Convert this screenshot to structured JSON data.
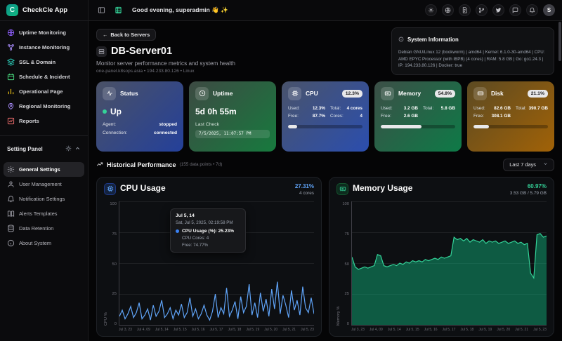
{
  "app": {
    "name": "CheckCle App",
    "logo_letter": "C"
  },
  "header": {
    "greeting": "Good evening, superadmin 👋 ✨",
    "avatar": "S",
    "icons": [
      "theme",
      "language",
      "docs",
      "github",
      "twitter",
      "chat",
      "notifications"
    ]
  },
  "sidebar": {
    "items": [
      {
        "label": "Uptime Monitoring",
        "icon": "globe-icon",
        "color": "#8b5cf6"
      },
      {
        "label": "Instance Monitoring",
        "icon": "nodes-icon",
        "color": "#a78bfa"
      },
      {
        "label": "SSL & Domain",
        "icon": "layers-icon",
        "color": "#2dd4bf"
      },
      {
        "label": "Schedule & Incident",
        "icon": "calendar-icon",
        "color": "#4ade80"
      },
      {
        "label": "Operational Page",
        "icon": "bar-chart-icon",
        "color": "#facc15"
      },
      {
        "label": "Regional Monitoring",
        "icon": "map-pin-icon",
        "color": "#a78bfa"
      },
      {
        "label": "Reports",
        "icon": "report-chart-icon",
        "color": "#f87171"
      }
    ],
    "settings_header": "Setting Panel",
    "settings_items": [
      {
        "label": "General Settings",
        "icon": "gear-icon",
        "active": true
      },
      {
        "label": "User Management",
        "icon": "user-icon",
        "active": false
      },
      {
        "label": "Notification Settings",
        "icon": "bell-icon",
        "active": false
      },
      {
        "label": "Alerts Templates",
        "icon": "book-icon",
        "active": false
      },
      {
        "label": "Data Retention",
        "icon": "database-icon",
        "active": false
      },
      {
        "label": "About System",
        "icon": "info-icon",
        "active": false
      }
    ]
  },
  "page": {
    "back_button": "Back to Servers",
    "title": "DB-Server01",
    "subtitle": "Monitor server performance metrics and system health",
    "meta": "one-panel.k8sops.asia • 194.233.80.126 • Linux",
    "system_info": {
      "title": "System Information",
      "text": "Debian GNU/Linux 12 (bookworm) | amd64 | Kernel: 6.1.0-30-amd64 | CPU: AMD EPYC Processor (with IBPB) (4 cores) | RAM: 5.8 GB | Go: go1.24.3 | IP: 194.233.80.126 | Docker: true"
    }
  },
  "cards": {
    "status": {
      "title": "Status",
      "value": "Up",
      "agent_label": "Agent:",
      "agent": "stopped",
      "connection_label": "Connection:",
      "connection": "connected"
    },
    "uptime": {
      "title": "Uptime",
      "value": "5d 0h 55m",
      "last_check_label": "Last Check",
      "last_check": "7/5/2025, 11:07:57 PM"
    },
    "cpu": {
      "title": "CPU",
      "badge": "12.3%",
      "used_label": "Used:",
      "used": "12.3%",
      "total_label": "Total:",
      "total": "4 cores",
      "free_label": "Free:",
      "free": "87.7%",
      "cores_label": "Cores:",
      "cores": "4",
      "progress": 12.3
    },
    "memory": {
      "title": "Memory",
      "badge": "54.8%",
      "used_label": "Used:",
      "used": "3.2 GB",
      "total_label": "Total:",
      "total": "5.8 GB",
      "free_label": "Free:",
      "free": "2.6 GB",
      "progress": 54.8
    },
    "disk": {
      "title": "Disk",
      "badge": "21.1%",
      "used_label": "Used:",
      "used": "82.6 GB",
      "total_label": "Total:",
      "total": "390.7 GB",
      "free_label": "Free:",
      "free": "308.1 GB",
      "progress": 21.1
    }
  },
  "performance": {
    "title": "Historical Performance",
    "meta": "(155 data points • 7d)",
    "range": "Last 7 days"
  },
  "tooltip": {
    "title": "Jul 5, 14",
    "date": "Sat, Jul 5, 2025, 02:19:58 PM",
    "main": "CPU Usage (%): 25.23%",
    "line2": "CPU Cores: 4",
    "line3": "Free: 74.77%"
  },
  "colors": {
    "accent_teal": "#10b981",
    "status_up": "#34d399",
    "cpu_accent": "#60a5fa",
    "memory_accent": "#34d399"
  },
  "chart_data": [
    {
      "type": "line",
      "title": "CPU Usage",
      "current": "27.31%",
      "sub": "4 cores",
      "ylabel": "CPU %",
      "ylim": [
        0,
        100
      ],
      "yticks": [
        100,
        75,
        50,
        25,
        0
      ],
      "x_labels": [
        "Jul 3, 23",
        "Jul 4, 09",
        "Jul 5, 14",
        "Jul 5, 15",
        "Jul 5, 16",
        "Jul 5, 17",
        "Jul 5, 18",
        "Jul 5, 19",
        "Jul 5, 20",
        "Jul 5, 21",
        "Jul 5, 23"
      ],
      "color": "#60a5fa",
      "values": [
        7,
        12,
        5,
        9,
        15,
        6,
        10,
        18,
        5,
        8,
        13,
        4,
        16,
        7,
        11,
        20,
        6,
        9,
        14,
        5,
        12,
        8,
        17,
        6,
        10,
        22,
        7,
        13,
        5,
        9,
        16,
        8,
        4,
        11,
        25,
        6,
        14,
        9,
        30,
        7,
        12,
        19,
        5,
        23,
        10,
        15,
        33,
        8,
        18,
        6,
        26,
        11,
        21,
        7,
        29,
        13,
        35,
        9,
        24,
        16,
        6,
        28,
        12,
        20,
        8,
        31,
        14,
        10,
        22,
        9
      ]
    },
    {
      "type": "area",
      "title": "Memory Usage",
      "current": "60.97%",
      "sub": "3.53 GB / 5.79 GB",
      "ylabel": "Memory %",
      "ylim": [
        0,
        100
      ],
      "yticks": [
        100,
        75,
        50,
        25,
        0
      ],
      "x_labels": [
        "Jul 3, 23",
        "Jul 4, 09",
        "Jul 5, 14",
        "Jul 5, 15",
        "Jul 5, 16",
        "Jul 5, 17",
        "Jul 5, 18",
        "Jul 5, 19",
        "Jul 5, 20",
        "Jul 5, 21",
        "Jul 5, 23"
      ],
      "color": "#34d399",
      "fill": "rgba(16,185,129,0.45)",
      "values": [
        55,
        47,
        45,
        46,
        47,
        46,
        47,
        48,
        57,
        56,
        48,
        47,
        48,
        49,
        48,
        50,
        49,
        51,
        50,
        52,
        51,
        52,
        51,
        53,
        52,
        53,
        54,
        53,
        55,
        54,
        55,
        56,
        71,
        69,
        70,
        68,
        70,
        67,
        69,
        68,
        67,
        69,
        66,
        68,
        67,
        68,
        66,
        67,
        68,
        66,
        67,
        68,
        66,
        67,
        65,
        66,
        42,
        38,
        73,
        74,
        71,
        72
      ]
    }
  ]
}
